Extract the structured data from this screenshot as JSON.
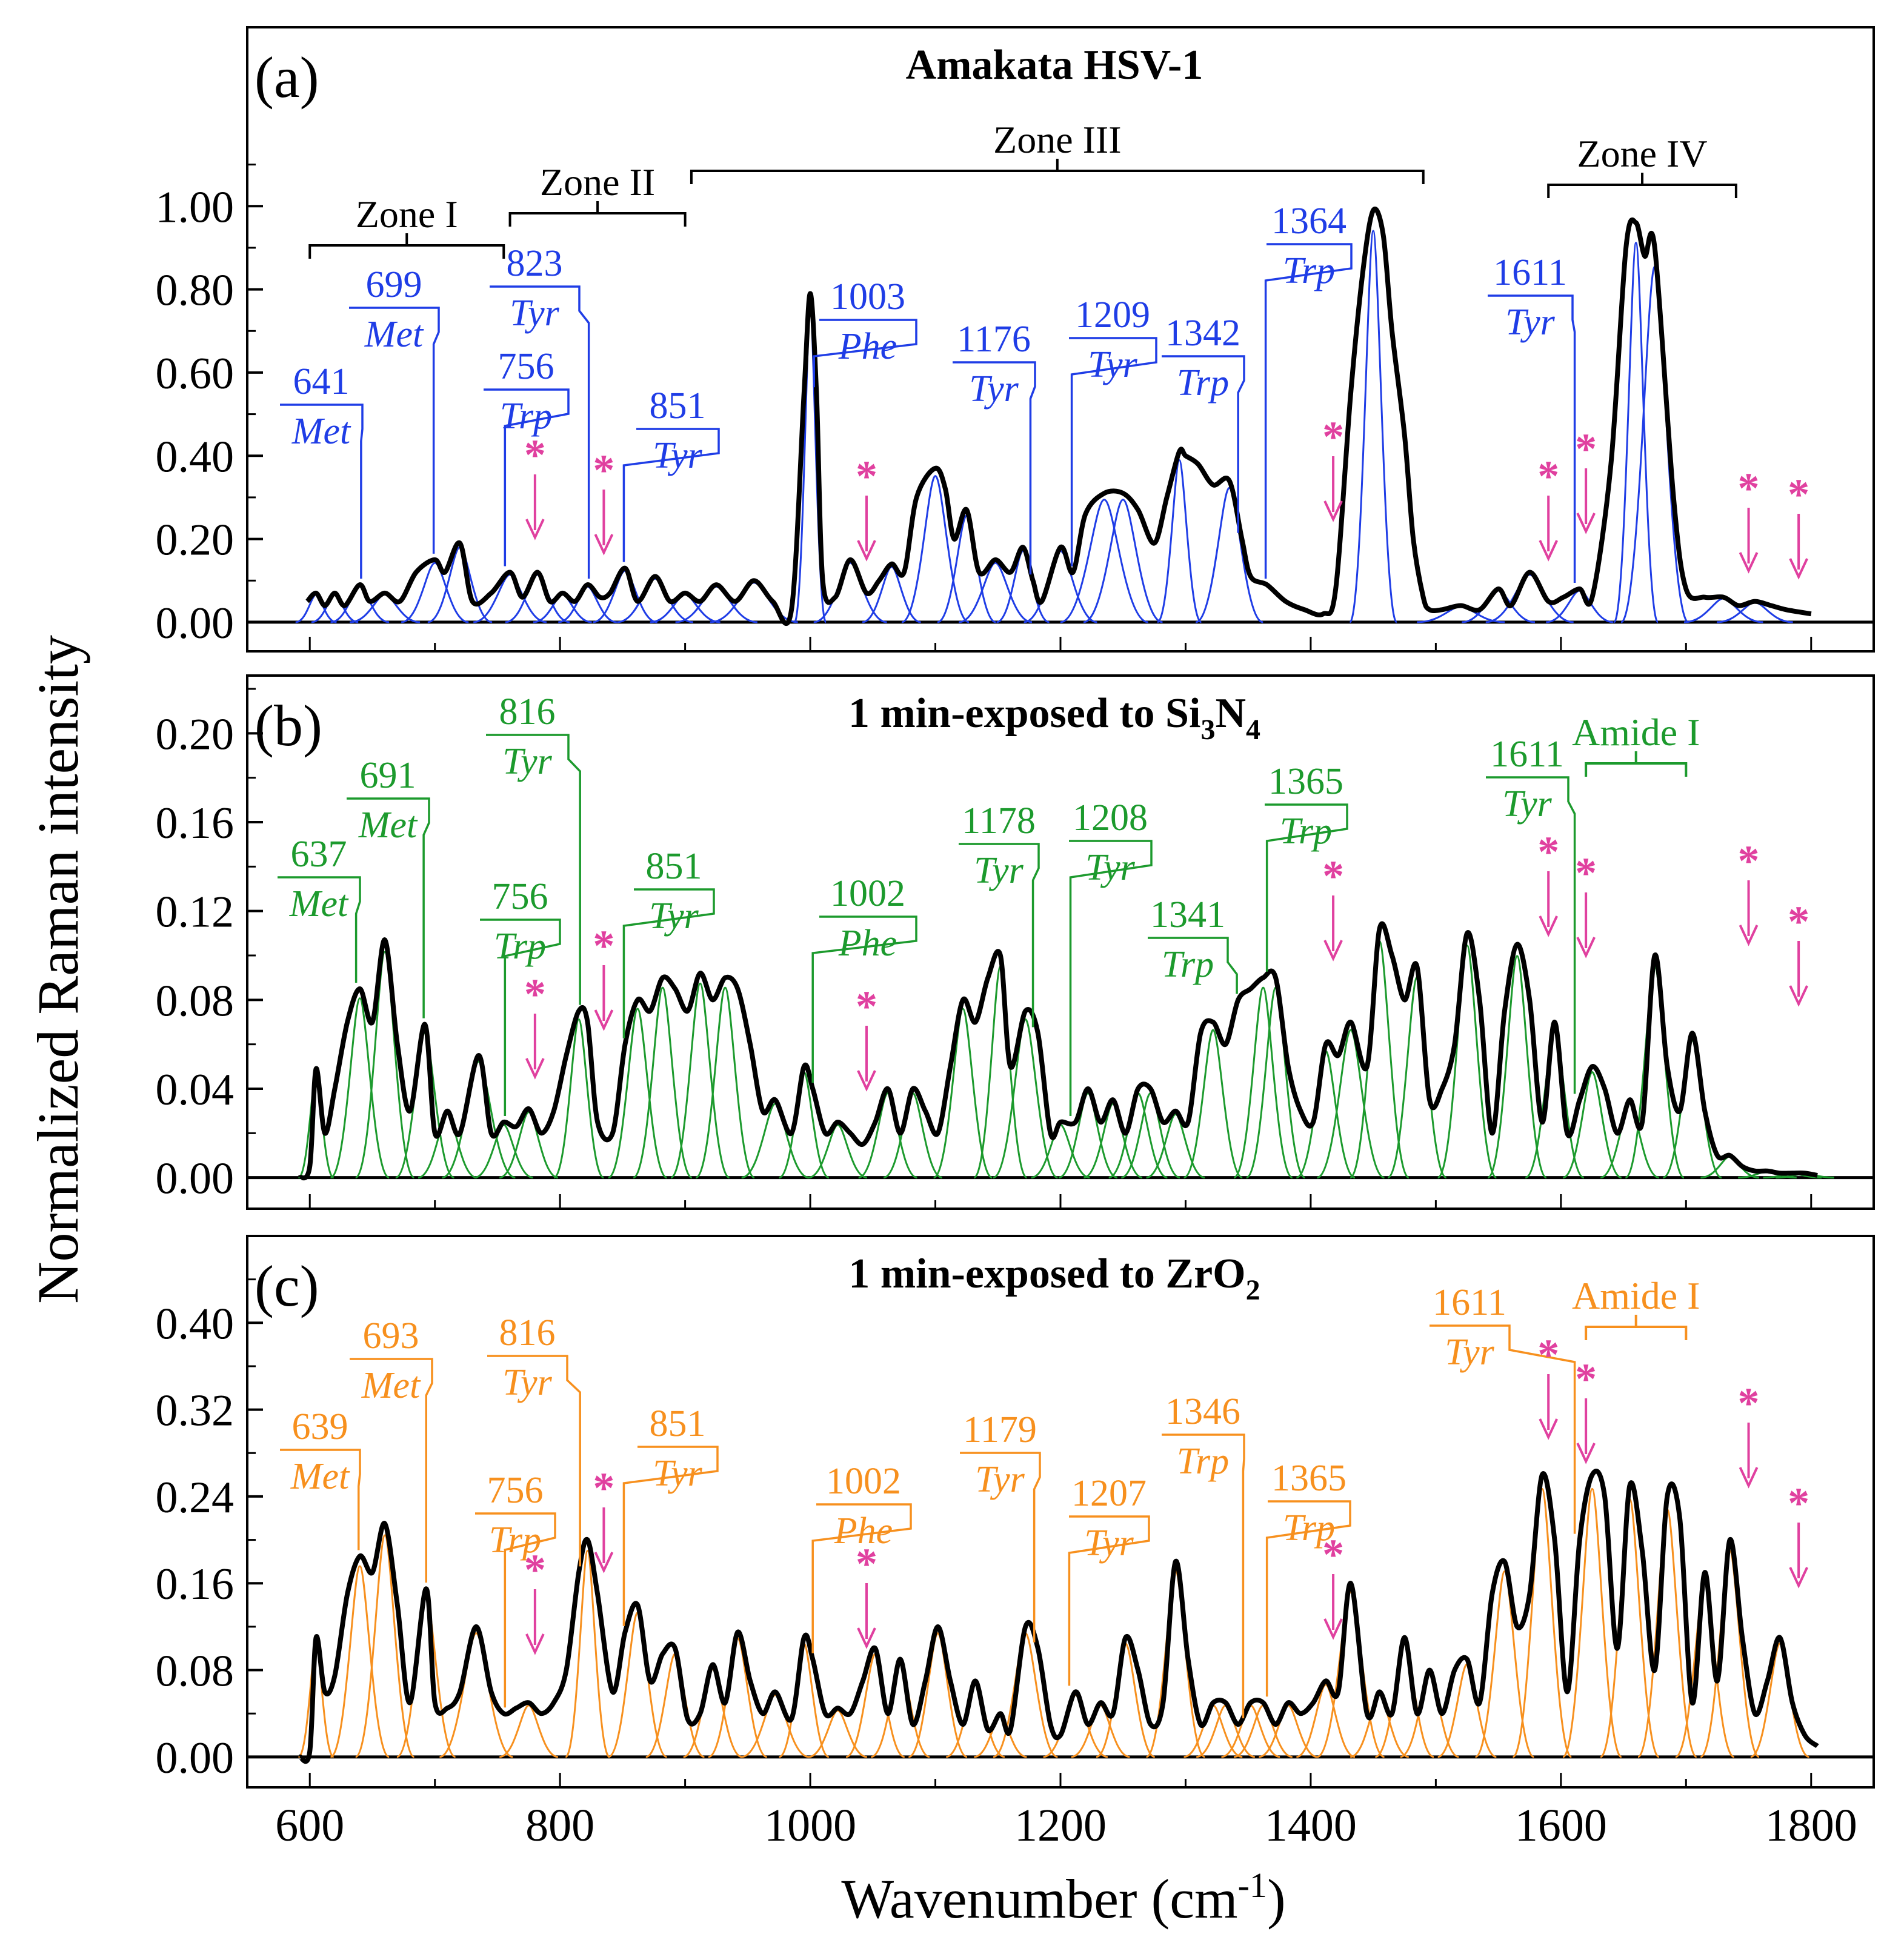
{
  "figure": {
    "ylabel": "Normalized Raman intensity",
    "xlabel_main": "Wavenumber (cm",
    "xlabel_sup": "-1",
    "xlabel_close": ")",
    "x_ticks": [
      "600",
      "800",
      "1000",
      "1200",
      "1400",
      "1600",
      "1800"
    ],
    "colors": {
      "frame": "#000000",
      "fit": "#000000",
      "star": "#e0409f",
      "a": "#1f3de6",
      "b": "#1c9a2d",
      "c": "#f7901e"
    }
  },
  "chart_data": [
    {
      "panel": "a",
      "letter": "(a)",
      "title": "Amakata HSV-1",
      "type": "line",
      "xlim": [
        550,
        1850
      ],
      "ylim": [
        -0.07,
        1.43
      ],
      "y_ticks": [
        "1.00",
        "0.80",
        "0.60",
        "0.40",
        "0.20",
        "0.00"
      ],
      "color": "#1f3de6",
      "x": [
        598,
        605,
        612,
        620,
        628,
        640,
        648,
        660,
        672,
        685,
        700,
        708,
        720,
        730,
        745,
        760,
        770,
        782,
        792,
        802,
        812,
        822,
        832,
        840,
        852,
        862,
        876,
        888,
        900,
        912,
        925,
        940,
        955,
        970,
        985,
        995,
        1000,
        1005,
        1010,
        1020,
        1032,
        1045,
        1055,
        1065,
        1075,
        1085,
        1100,
        1108,
        1115,
        1125,
        1135,
        1148,
        1160,
        1170,
        1178,
        1185,
        1200,
        1210,
        1220,
        1235,
        1250,
        1262,
        1275,
        1285,
        1295,
        1300,
        1310,
        1322,
        1335,
        1345,
        1352,
        1365,
        1380,
        1395,
        1410,
        1420,
        1432,
        1442,
        1450,
        1458,
        1465,
        1475,
        1482,
        1490,
        1495,
        1505,
        1520,
        1535,
        1550,
        1560,
        1575,
        1590,
        1602,
        1615,
        1625,
        1640,
        1652,
        1660,
        1667,
        1675,
        1690,
        1700,
        1715,
        1730,
        1742,
        1755,
        1768,
        1780,
        1800
      ],
      "y": [
        0.05,
        0.07,
        0.04,
        0.07,
        0.04,
        0.09,
        0.05,
        0.07,
        0.05,
        0.12,
        0.15,
        0.12,
        0.19,
        0.05,
        0.07,
        0.12,
        0.06,
        0.12,
        0.05,
        0.07,
        0.05,
        0.09,
        0.06,
        0.07,
        0.13,
        0.05,
        0.11,
        0.05,
        0.07,
        0.05,
        0.09,
        0.05,
        0.1,
        0.05,
        0.03,
        0.55,
        0.79,
        0.55,
        0.1,
        0.06,
        0.15,
        0.07,
        0.1,
        0.14,
        0.12,
        0.3,
        0.37,
        0.32,
        0.2,
        0.27,
        0.12,
        0.15,
        0.12,
        0.18,
        0.1,
        0.05,
        0.18,
        0.12,
        0.26,
        0.31,
        0.31,
        0.27,
        0.19,
        0.3,
        0.41,
        0.4,
        0.38,
        0.33,
        0.34,
        0.2,
        0.11,
        0.09,
        0.05,
        0.03,
        0.02,
        0.08,
        0.55,
        0.85,
        0.99,
        0.93,
        0.7,
        0.45,
        0.2,
        0.06,
        0.03,
        0.03,
        0.04,
        0.03,
        0.08,
        0.04,
        0.12,
        0.05,
        0.06,
        0.08,
        0.06,
        0.38,
        0.9,
        0.96,
        0.88,
        0.9,
        0.3,
        0.08,
        0.06,
        0.06,
        0.04,
        0.05,
        0.04,
        0.03,
        0.02
      ],
      "baseline_end": 1800,
      "labels": [
        {
          "wn": "641",
          "res": "Met",
          "x": 641
        },
        {
          "wn": "699",
          "res": "Met",
          "x": 699
        },
        {
          "wn": "823",
          "res": "Tyr",
          "x": 823
        },
        {
          "wn": "756",
          "res": "Trp",
          "x": 756
        },
        {
          "wn": "851",
          "res": "Tyr",
          "x": 851
        },
        {
          "wn": "1003",
          "res": "Phe",
          "x": 1003
        },
        {
          "wn": "1176",
          "res": "Tyr",
          "x": 1176
        },
        {
          "wn": "1209",
          "res": "Tyr",
          "x": 1209
        },
        {
          "wn": "1342",
          "res": "Trp",
          "x": 1342
        },
        {
          "wn": "1364",
          "res": "Trp",
          "x": 1364
        },
        {
          "wn": "1611",
          "res": "Tyr",
          "x": 1611
        }
      ],
      "zones": [
        {
          "label": "Zone I",
          "from": 600,
          "to": 755
        },
        {
          "label": "Zone II",
          "from": 760,
          "to": 900
        },
        {
          "label": "Zone III",
          "from": 905,
          "to": 1490
        },
        {
          "label": "Zone IV",
          "from": 1590,
          "to": 1740
        }
      ],
      "stars": [
        780,
        835,
        1045,
        1418,
        1590,
        1620,
        1750,
        1790
      ]
    },
    {
      "panel": "b",
      "letter": "(b)",
      "title_main": "1 min-exposed to Si",
      "title_sub1": "3",
      "title_mid": "N",
      "title_sub2": "4",
      "type": "line",
      "xlim": [
        550,
        1850
      ],
      "ylim": [
        -0.014,
        0.226
      ],
      "y_ticks": [
        "0.20",
        "0.16",
        "0.12",
        "0.08",
        "0.04",
        "0.00"
      ],
      "color": "#1c9a2d",
      "x": [
        592,
        600,
        605,
        612,
        620,
        630,
        640,
        650,
        660,
        670,
        680,
        692,
        700,
        710,
        720,
        735,
        745,
        755,
        765,
        775,
        785,
        795,
        805,
        815,
        822,
        830,
        842,
        852,
        862,
        872,
        882,
        892,
        902,
        912,
        922,
        932,
        942,
        952,
        962,
        972,
        985,
        995,
        1002,
        1012,
        1022,
        1032,
        1042,
        1052,
        1062,
        1072,
        1082,
        1092,
        1102,
        1112,
        1122,
        1132,
        1142,
        1152,
        1160,
        1172,
        1182,
        1192,
        1200,
        1212,
        1222,
        1232,
        1242,
        1252,
        1262,
        1272,
        1282,
        1292,
        1302,
        1312,
        1322,
        1332,
        1342,
        1352,
        1362,
        1372,
        1382,
        1392,
        1402,
        1412,
        1422,
        1432,
        1445,
        1455,
        1465,
        1475,
        1485,
        1495,
        1505,
        1515,
        1525,
        1535,
        1545,
        1555,
        1565,
        1575,
        1585,
        1595,
        1605,
        1615,
        1625,
        1635,
        1645,
        1655,
        1665,
        1675,
        1685,
        1695,
        1705,
        1715,
        1725,
        1735,
        1745,
        1755,
        1765,
        1775,
        1785,
        1795,
        1805
      ],
      "y": [
        0.0,
        0.005,
        0.049,
        0.02,
        0.04,
        0.07,
        0.085,
        0.07,
        0.107,
        0.06,
        0.03,
        0.069,
        0.02,
        0.03,
        0.02,
        0.055,
        0.02,
        0.025,
        0.023,
        0.031,
        0.02,
        0.03,
        0.055,
        0.075,
        0.07,
        0.025,
        0.02,
        0.06,
        0.08,
        0.075,
        0.09,
        0.085,
        0.075,
        0.092,
        0.08,
        0.09,
        0.085,
        0.06,
        0.03,
        0.035,
        0.02,
        0.05,
        0.04,
        0.02,
        0.025,
        0.02,
        0.015,
        0.025,
        0.04,
        0.02,
        0.04,
        0.03,
        0.02,
        0.05,
        0.08,
        0.07,
        0.09,
        0.1,
        0.05,
        0.075,
        0.065,
        0.02,
        0.025,
        0.025,
        0.04,
        0.025,
        0.035,
        0.02,
        0.04,
        0.04,
        0.025,
        0.03,
        0.025,
        0.065,
        0.07,
        0.06,
        0.08,
        0.085,
        0.09,
        0.09,
        0.05,
        0.03,
        0.025,
        0.06,
        0.055,
        0.07,
        0.05,
        0.112,
        0.1,
        0.08,
        0.095,
        0.035,
        0.04,
        0.06,
        0.11,
        0.08,
        0.02,
        0.075,
        0.105,
        0.08,
        0.025,
        0.07,
        0.02,
        0.035,
        0.05,
        0.04,
        0.02,
        0.035,
        0.025,
        0.1,
        0.05,
        0.03,
        0.065,
        0.03,
        0.01,
        0.01,
        0.005,
        0.003,
        0.003,
        0.002,
        0.002,
        0.002,
        0.001
      ],
      "baseline_end": 1815,
      "labels": [
        {
          "wn": "637",
          "res": "Met",
          "x": 637
        },
        {
          "wn": "691",
          "res": "Met",
          "x": 691
        },
        {
          "wn": "816",
          "res": "Tyr",
          "x": 816
        },
        {
          "wn": "756",
          "res": "Trp",
          "x": 756
        },
        {
          "wn": "851",
          "res": "Tyr",
          "x": 851
        },
        {
          "wn": "1002",
          "res": "Phe",
          "x": 1002
        },
        {
          "wn": "1178",
          "res": "Tyr",
          "x": 1178
        },
        {
          "wn": "1208",
          "res": "Tyr",
          "x": 1208
        },
        {
          "wn": "1341",
          "res": "Trp",
          "x": 1341
        },
        {
          "wn": "1365",
          "res": "Trp",
          "x": 1365
        },
        {
          "wn": "1611",
          "res": "Tyr",
          "x": 1611
        }
      ],
      "zones": [
        {
          "label": "Amide I",
          "from": 1620,
          "to": 1700
        }
      ],
      "stars": [
        780,
        835,
        1045,
        1418,
        1590,
        1620,
        1750,
        1790
      ]
    },
    {
      "panel": "c",
      "letter": "(c)",
      "title_main": "1 min-exposed to ZrO",
      "title_sub1": "2",
      "type": "line",
      "xlim": [
        550,
        1850
      ],
      "ylim": [
        -0.028,
        0.48
      ],
      "y_ticks": [
        "0.40",
        "0.32",
        "0.24",
        "0.16",
        "0.08",
        "0.00"
      ],
      "color": "#f7901e",
      "x": [
        592,
        600,
        605,
        612,
        620,
        630,
        640,
        650,
        660,
        670,
        680,
        693,
        700,
        710,
        720,
        733,
        745,
        755,
        765,
        775,
        785,
        795,
        805,
        815,
        822,
        830,
        842,
        852,
        862,
        872,
        882,
        892,
        902,
        912,
        922,
        932,
        942,
        952,
        962,
        972,
        985,
        995,
        1002,
        1012,
        1022,
        1032,
        1042,
        1052,
        1062,
        1072,
        1082,
        1092,
        1102,
        1112,
        1122,
        1132,
        1142,
        1152,
        1160,
        1172,
        1182,
        1192,
        1200,
        1212,
        1222,
        1232,
        1242,
        1252,
        1262,
        1272,
        1282,
        1292,
        1302,
        1312,
        1322,
        1332,
        1342,
        1352,
        1362,
        1372,
        1382,
        1392,
        1402,
        1412,
        1422,
        1432,
        1445,
        1455,
        1465,
        1475,
        1485,
        1495,
        1505,
        1515,
        1525,
        1535,
        1545,
        1555,
        1565,
        1575,
        1585,
        1595,
        1605,
        1615,
        1625,
        1635,
        1645,
        1655,
        1665,
        1675,
        1685,
        1695,
        1705,
        1715,
        1725,
        1735,
        1745,
        1755,
        1765,
        1775,
        1785,
        1795,
        1805
      ],
      "y": [
        0.0,
        0.005,
        0.11,
        0.06,
        0.075,
        0.15,
        0.185,
        0.17,
        0.215,
        0.14,
        0.05,
        0.155,
        0.05,
        0.045,
        0.06,
        0.12,
        0.06,
        0.04,
        0.045,
        0.05,
        0.04,
        0.05,
        0.08,
        0.17,
        0.2,
        0.15,
        0.06,
        0.115,
        0.14,
        0.07,
        0.095,
        0.1,
        0.035,
        0.04,
        0.085,
        0.05,
        0.115,
        0.07,
        0.04,
        0.06,
        0.035,
        0.11,
        0.09,
        0.04,
        0.045,
        0.04,
        0.07,
        0.1,
        0.04,
        0.09,
        0.03,
        0.07,
        0.12,
        0.07,
        0.03,
        0.07,
        0.025,
        0.04,
        0.025,
        0.12,
        0.1,
        0.03,
        0.02,
        0.06,
        0.03,
        0.05,
        0.04,
        0.11,
        0.08,
        0.03,
        0.05,
        0.18,
        0.09,
        0.03,
        0.05,
        0.05,
        0.03,
        0.05,
        0.05,
        0.03,
        0.05,
        0.04,
        0.05,
        0.07,
        0.06,
        0.16,
        0.04,
        0.06,
        0.04,
        0.11,
        0.04,
        0.08,
        0.04,
        0.08,
        0.09,
        0.05,
        0.15,
        0.18,
        0.12,
        0.15,
        0.26,
        0.2,
        0.06,
        0.2,
        0.26,
        0.24,
        0.1,
        0.25,
        0.19,
        0.08,
        0.24,
        0.22,
        0.05,
        0.17,
        0.07,
        0.2,
        0.11,
        0.04,
        0.07,
        0.11,
        0.05,
        0.02,
        0.01
      ],
      "baseline_end": 1815,
      "labels": [
        {
          "wn": "639",
          "res": "Met",
          "x": 639
        },
        {
          "wn": "693",
          "res": "Met",
          "x": 693
        },
        {
          "wn": "816",
          "res": "Tyr",
          "x": 816
        },
        {
          "wn": "756",
          "res": "Trp",
          "x": 756
        },
        {
          "wn": "851",
          "res": "Tyr",
          "x": 851
        },
        {
          "wn": "1002",
          "res": "Phe",
          "x": 1002
        },
        {
          "wn": "1179",
          "res": "Tyr",
          "x": 1179
        },
        {
          "wn": "1207",
          "res": "Tyr",
          "x": 1207
        },
        {
          "wn": "1346",
          "res": "Trp",
          "x": 1346
        },
        {
          "wn": "1365",
          "res": "Trp",
          "x": 1365
        },
        {
          "wn": "1611",
          "res": "Tyr",
          "x": 1611
        }
      ],
      "zones": [
        {
          "label": "Amide I",
          "from": 1620,
          "to": 1700
        }
      ],
      "stars": [
        780,
        835,
        1045,
        1418,
        1590,
        1620,
        1750,
        1790
      ]
    }
  ]
}
